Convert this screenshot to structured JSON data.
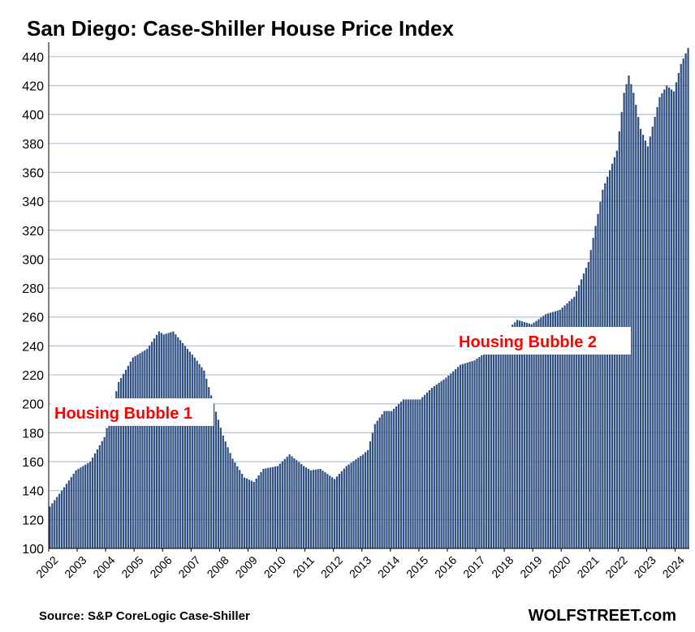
{
  "chart_data": {
    "type": "bar",
    "title": "San Diego: Case-Shiller House Price Index",
    "xlabel": "",
    "ylabel": "",
    "ylim": [
      100,
      450
    ],
    "yticks": [
      100,
      120,
      140,
      160,
      180,
      200,
      220,
      240,
      260,
      280,
      300,
      320,
      340,
      360,
      380,
      400,
      420,
      440
    ],
    "x_start": "2002-01",
    "x_end": "2024-06",
    "frequency": "monthly",
    "grid": true,
    "bar_color": "#2F4F80",
    "xticks": [
      "2002",
      "2003",
      "2004",
      "2005",
      "2006",
      "2007",
      "2008",
      "2009",
      "2010",
      "2011",
      "2012",
      "2013",
      "2014",
      "2015",
      "2016",
      "2017",
      "2018",
      "2019",
      "2020",
      "2021",
      "2022",
      "2023",
      "2024"
    ],
    "anchors": [
      [
        "2002-01",
        129
      ],
      [
        "2002-06",
        140
      ],
      [
        "2002-12",
        154
      ],
      [
        "2003-06",
        160
      ],
      [
        "2003-12",
        177
      ],
      [
        "2004-06",
        215
      ],
      [
        "2004-12",
        232
      ],
      [
        "2005-06",
        238
      ],
      [
        "2005-11",
        250
      ],
      [
        "2006-01",
        248
      ],
      [
        "2006-05",
        250
      ],
      [
        "2006-10",
        240
      ],
      [
        "2007-02",
        232
      ],
      [
        "2007-06",
        223
      ],
      [
        "2007-10",
        200
      ],
      [
        "2008-02",
        178
      ],
      [
        "2008-06",
        162
      ],
      [
        "2008-11",
        149
      ],
      [
        "2009-03",
        146
      ],
      [
        "2009-07",
        155
      ],
      [
        "2010-01",
        157
      ],
      [
        "2010-06",
        165
      ],
      [
        "2010-12",
        157
      ],
      [
        "2011-03",
        154
      ],
      [
        "2011-07",
        155
      ],
      [
        "2012-01",
        148
      ],
      [
        "2012-06",
        157
      ],
      [
        "2013-01",
        165
      ],
      [
        "2013-03",
        168
      ],
      [
        "2013-06",
        186
      ],
      [
        "2013-10",
        195
      ],
      [
        "2014-01",
        195
      ],
      [
        "2014-06",
        203
      ],
      [
        "2015-01",
        203
      ],
      [
        "2015-06",
        211
      ],
      [
        "2015-12",
        218
      ],
      [
        "2016-06",
        227
      ],
      [
        "2016-12",
        230
      ],
      [
        "2017-06",
        237
      ],
      [
        "2017-12",
        248
      ],
      [
        "2018-06",
        258
      ],
      [
        "2018-12",
        255
      ],
      [
        "2019-06",
        262
      ],
      [
        "2019-12",
        265
      ],
      [
        "2020-06",
        274
      ],
      [
        "2020-12",
        298
      ],
      [
        "2021-06",
        348
      ],
      [
        "2021-12",
        375
      ],
      [
        "2022-03",
        415
      ],
      [
        "2022-05",
        427
      ],
      [
        "2022-07",
        415
      ],
      [
        "2022-10",
        390
      ],
      [
        "2023-01",
        378
      ],
      [
        "2023-06",
        412
      ],
      [
        "2023-09",
        420
      ],
      [
        "2023-12",
        416
      ],
      [
        "2024-03",
        435
      ],
      [
        "2024-06",
        446
      ]
    ],
    "annotations": [
      {
        "text": "Housing Bubble 1",
        "color": "#FF0000"
      },
      {
        "text": "Housing Bubble 2",
        "color": "#FF0000"
      }
    ]
  },
  "footer": {
    "source": "Source: S&P CoreLogic Case-Shiller",
    "brand": "WOLFSTREET.com"
  }
}
